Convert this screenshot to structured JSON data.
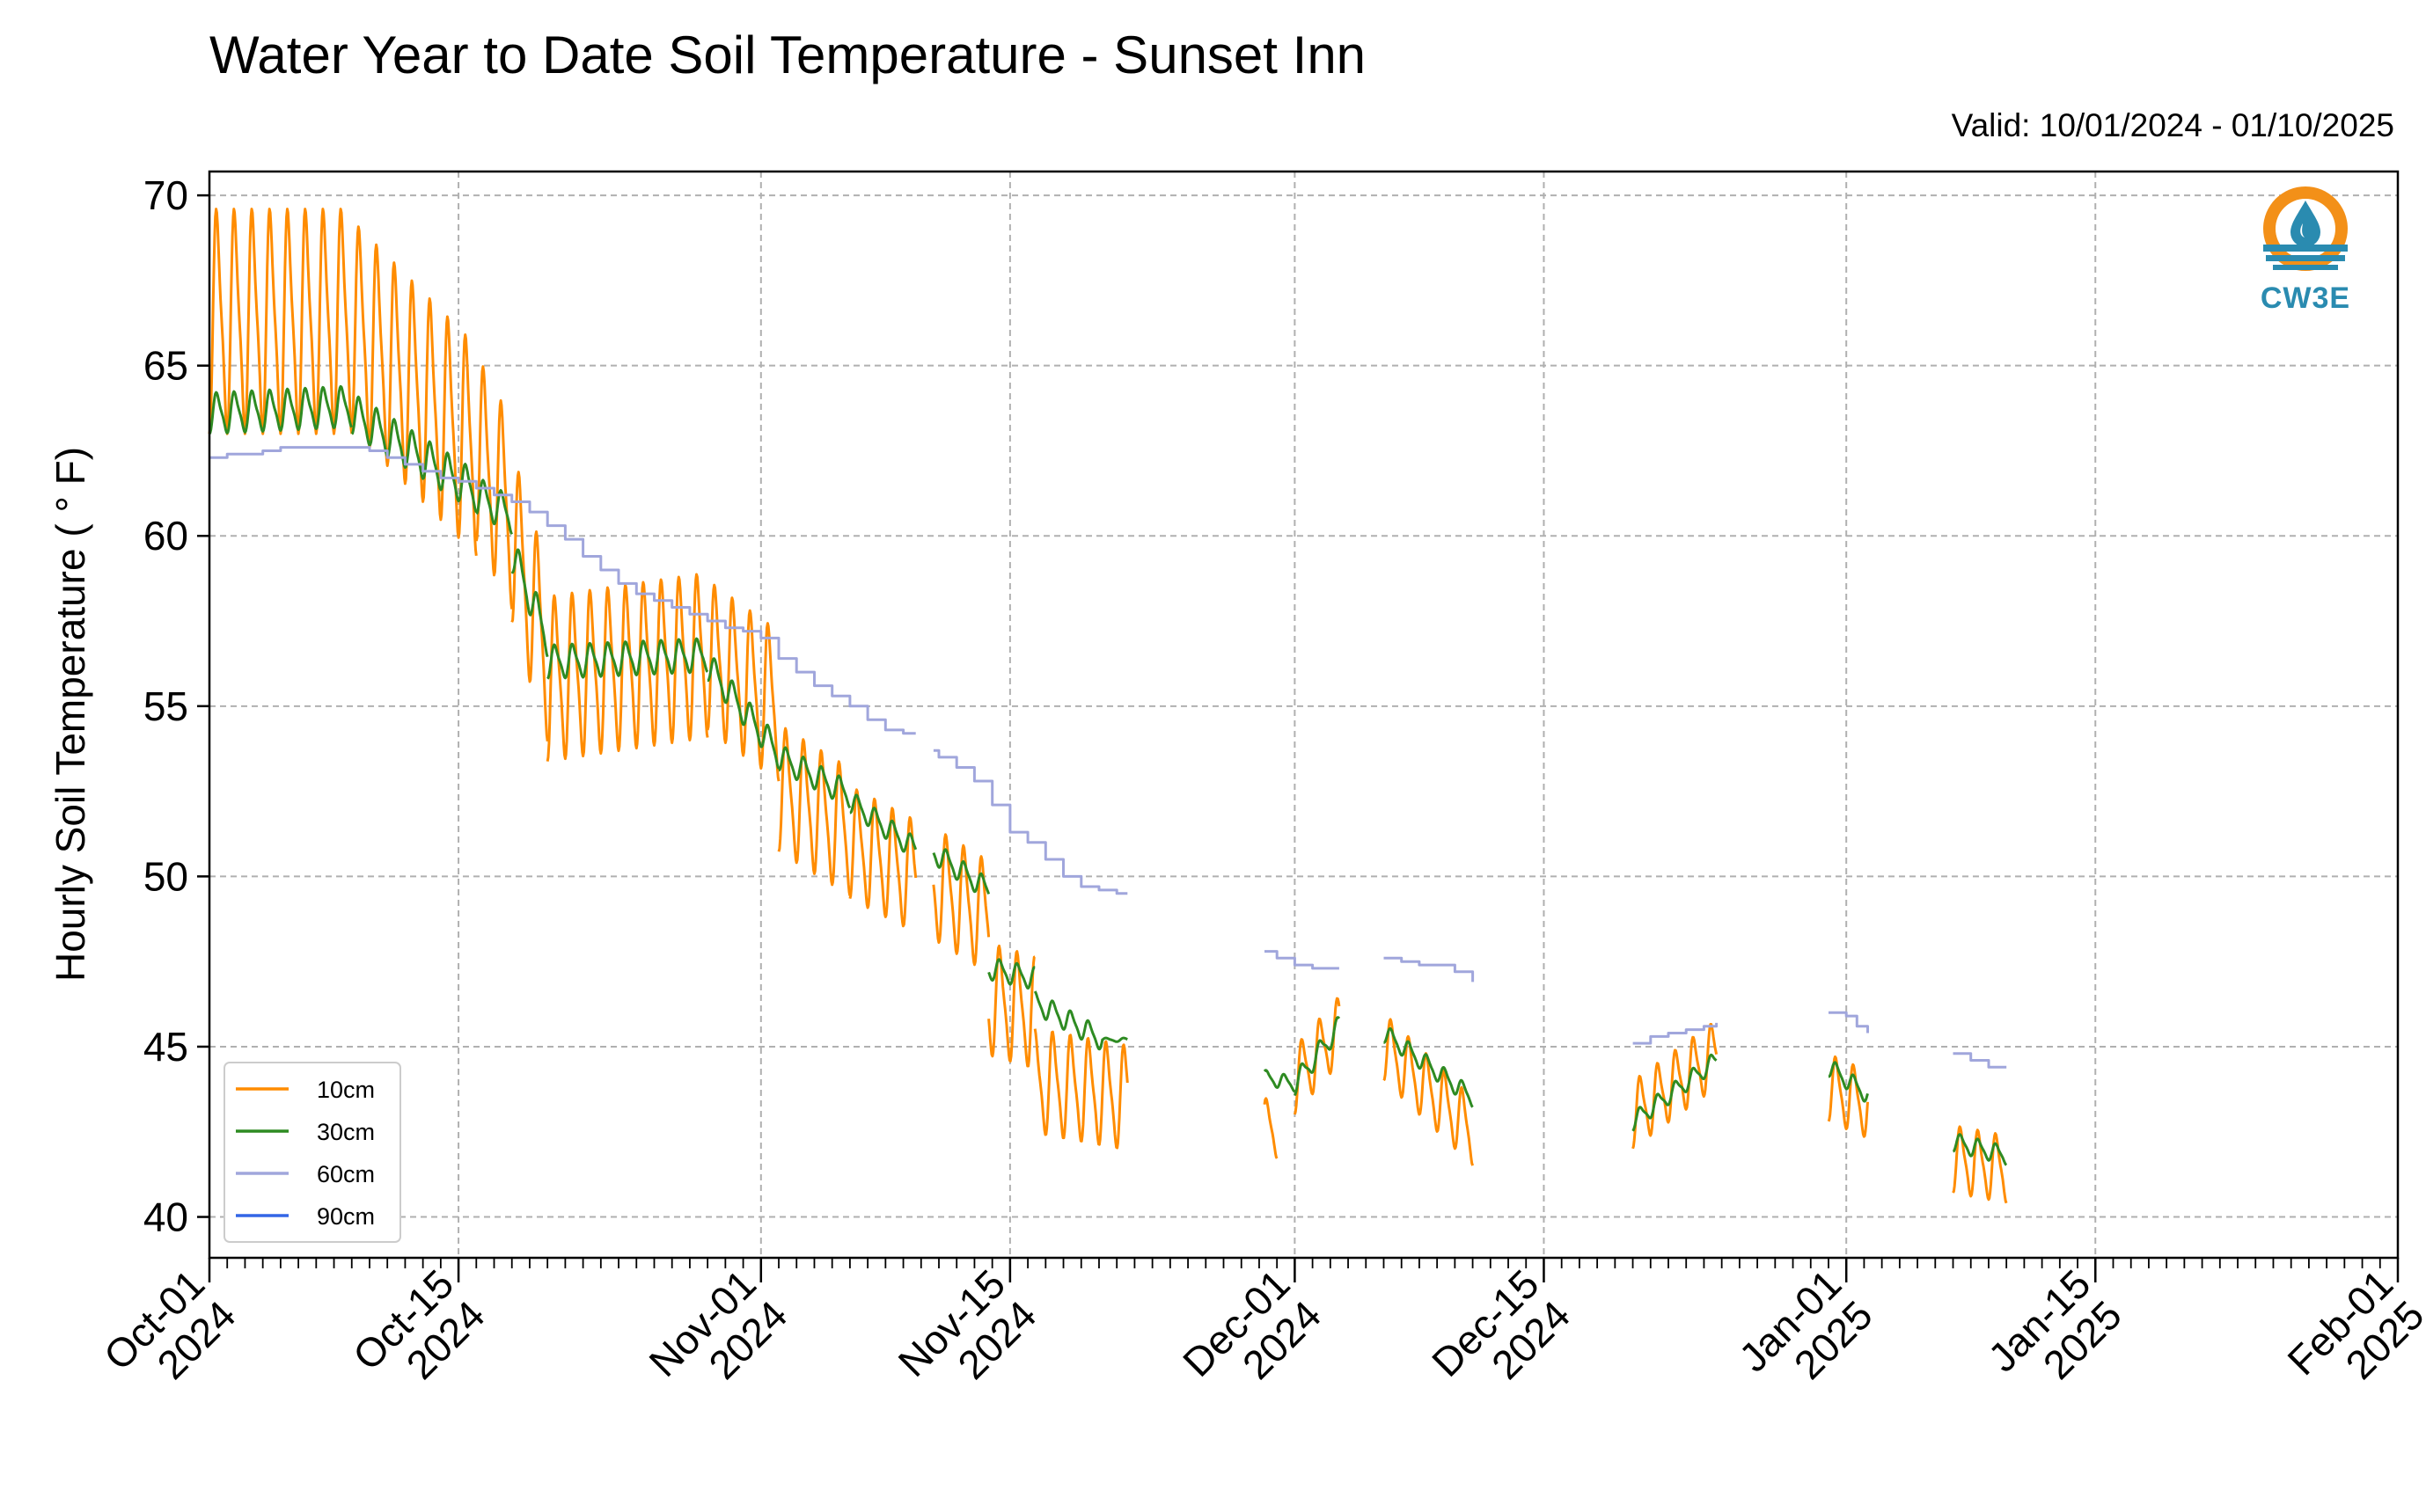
{
  "chart_data": {
    "type": "line",
    "title": "Water Year to Date Soil Temperature - Sunset Inn",
    "subtitle": "Valid: 10/01/2024 - 01/10/2025",
    "ylabel": "Hourly Soil Temperature ( ° F)",
    "xlabel": "",
    "ylim": [
      38.8,
      70.7
    ],
    "xlim": [
      "2024-10-01",
      "2025-02-01"
    ],
    "yticks": [
      40,
      45,
      50,
      55,
      60,
      65,
      70
    ],
    "xticks": [
      {
        "date": "2024-10-01",
        "label": [
          "Oct-01",
          "2024"
        ]
      },
      {
        "date": "2024-10-15",
        "label": [
          "Oct-15",
          "2024"
        ]
      },
      {
        "date": "2024-11-01",
        "label": [
          "Nov-01",
          "2024"
        ]
      },
      {
        "date": "2024-11-15",
        "label": [
          "Nov-15",
          "2024"
        ]
      },
      {
        "date": "2024-12-01",
        "label": [
          "Dec-01",
          "2024"
        ]
      },
      {
        "date": "2024-12-15",
        "label": [
          "Dec-15",
          "2024"
        ]
      },
      {
        "date": "2025-01-01",
        "label": [
          "Jan-01",
          "2025"
        ]
      },
      {
        "date": "2025-01-15",
        "label": [
          "Jan-15",
          "2025"
        ]
      },
      {
        "date": "2025-02-01",
        "label": [
          "Feb-01",
          "2025"
        ]
      }
    ],
    "grid": true,
    "legend_position": "lower-left",
    "series": [
      {
        "name": "10cm",
        "color": "#ff8c00",
        "style": "diurnal",
        "segments": [
          {
            "start": "2024-10-01",
            "end": "2024-10-09",
            "mean": [
              66.3,
              66.3
            ],
            "amp": 3.0
          },
          {
            "start": "2024-10-09",
            "end": "2024-10-16",
            "mean": [
              66.2,
              62.5
            ],
            "amp": 2.8
          },
          {
            "start": "2024-10-16",
            "end": "2024-10-18",
            "mean": [
              62.6,
              60.6
            ],
            "amp": 2.5
          },
          {
            "start": "2024-10-18",
            "end": "2024-10-20",
            "mean": [
              60.0,
              56.5
            ],
            "amp": 2.3
          },
          {
            "start": "2024-10-20",
            "end": "2024-10-29",
            "mean": [
              55.8,
              56.5
            ],
            "amp": 2.2
          },
          {
            "start": "2024-10-29",
            "end": "2024-11-02",
            "mean": [
              56.5,
              55.0
            ],
            "amp": 2.0
          },
          {
            "start": "2024-11-02",
            "end": "2024-11-06",
            "mean": [
              52.6,
              51.3
            ],
            "amp": 1.7
          },
          {
            "start": "2024-11-06",
            "end": "2024-11-09.7",
            "mean": [
              51.0,
              50.0
            ],
            "amp": 1.5
          },
          {
            "start": "2024-11-10.7",
            "end": "2024-11-13.8",
            "mean": [
              49.8,
              48.8
            ],
            "amp": 1.5
          },
          {
            "start": "2024-11-13.8",
            "end": "2024-11-16.4",
            "mean": [
              46.4,
              46.0
            ],
            "amp": 1.5
          },
          {
            "start": "2024-11-16.4",
            "end": "2024-11-21.6",
            "mean": [
              44.0,
              43.5
            ],
            "amp": 1.4
          },
          {
            "start": "2024-11-29.3",
            "end": "2024-11-30.0",
            "mean": [
              42.6,
              42.6
            ],
            "amp": 0.8
          },
          {
            "start": "2024-12-01.0",
            "end": "2024-12-03.5",
            "mean": [
              44.0,
              45.5
            ],
            "amp": 0.9
          },
          {
            "start": "2024-12-06.0",
            "end": "2024-12-11.0",
            "mean": [
              45.0,
              42.5
            ],
            "amp": 0.9
          },
          {
            "start": "2024-12-20.0",
            "end": "2024-12-24.7",
            "mean": [
              43.0,
              44.8
            ],
            "amp": 0.9
          },
          {
            "start": "2024-12-31.0",
            "end": "2025-01-02.2",
            "mean": [
              43.8,
              43.3
            ],
            "amp": 0.9
          },
          {
            "start": "2025-01-07.0",
            "end": "2025-01-10.0",
            "mean": [
              41.7,
              41.4
            ],
            "amp": 0.9
          }
        ]
      },
      {
        "name": "30cm",
        "color": "#2e8b22",
        "style": "diurnal",
        "segments": [
          {
            "start": "2024-10-01",
            "end": "2024-10-09",
            "mean": [
              63.6,
              63.8
            ],
            "amp": 0.55
          },
          {
            "start": "2024-10-09",
            "end": "2024-10-16",
            "mean": [
              63.6,
              61.3
            ],
            "amp": 0.55
          },
          {
            "start": "2024-10-16",
            "end": "2024-10-18",
            "mean": [
              61.2,
              60.6
            ],
            "amp": 0.5
          },
          {
            "start": "2024-10-18",
            "end": "2024-10-20",
            "mean": [
              59.5,
              57.0
            ],
            "amp": 0.5
          },
          {
            "start": "2024-10-20",
            "end": "2024-10-29",
            "mean": [
              56.3,
              56.5
            ],
            "amp": 0.45
          },
          {
            "start": "2024-10-29",
            "end": "2024-11-02",
            "mean": [
              56.2,
              53.6
            ],
            "amp": 0.4
          },
          {
            "start": "2024-11-02",
            "end": "2024-11-06",
            "mean": [
              53.5,
              52.4
            ],
            "amp": 0.35
          },
          {
            "start": "2024-11-06",
            "end": "2024-11-09.7",
            "mean": [
              52.2,
              50.8
            ],
            "amp": 0.3
          },
          {
            "start": "2024-11-10.7",
            "end": "2024-11-13.8",
            "mean": [
              50.7,
              49.6
            ],
            "amp": 0.3
          },
          {
            "start": "2024-11-13.8",
            "end": "2024-11-16.4",
            "mean": [
              47.3,
              47.0
            ],
            "amp": 0.3
          },
          {
            "start": "2024-11-16.4",
            "end": "2024-11-20.2",
            "mean": [
              46.3,
              45.2
            ],
            "amp": 0.3
          },
          {
            "start": "2024-11-20.2",
            "end": "2024-11-21.6",
            "mean": [
              45.2,
              45.2
            ],
            "amp": 0.05
          },
          {
            "start": "2024-11-29.3",
            "end": "2024-12-01.0",
            "mean": [
              44.1,
              43.9
            ],
            "amp": 0.2
          },
          {
            "start": "2024-12-01.0",
            "end": "2024-12-03.5",
            "mean": [
              43.9,
              45.6
            ],
            "amp": 0.3
          },
          {
            "start": "2024-12-06.0",
            "end": "2024-12-11.0",
            "mean": [
              45.4,
              43.5
            ],
            "amp": 0.25
          },
          {
            "start": "2024-12-20.0",
            "end": "2024-12-24.7",
            "mean": [
              42.8,
              44.6
            ],
            "amp": 0.25
          },
          {
            "start": "2024-12-31.0",
            "end": "2025-01-02.2",
            "mean": [
              44.4,
              43.6
            ],
            "amp": 0.25
          },
          {
            "start": "2025-01-07.0",
            "end": "2025-01-10.0",
            "mean": [
              42.2,
              41.8
            ],
            "amp": 0.25
          }
        ]
      },
      {
        "name": "60cm",
        "color": "#a0a6dc",
        "style": "step",
        "segments": [
          {
            "points": [
              [
                "2024-10-01",
                62.3
              ],
              [
                "2024-10-02",
                62.4
              ],
              [
                "2024-10-04",
                62.5
              ],
              [
                "2024-10-05",
                62.6
              ],
              [
                "2024-10-07",
                62.6
              ],
              [
                "2024-10-09",
                62.6
              ],
              [
                "2024-10-10",
                62.5
              ],
              [
                "2024-10-11",
                62.3
              ],
              [
                "2024-10-12",
                62.1
              ],
              [
                "2024-10-13",
                61.9
              ],
              [
                "2024-10-14",
                61.7
              ],
              [
                "2024-10-15",
                61.6
              ],
              [
                "2024-10-16",
                61.4
              ],
              [
                "2024-10-17",
                61.2
              ],
              [
                "2024-10-18",
                61.0
              ],
              [
                "2024-10-19",
                60.7
              ],
              [
                "2024-10-20",
                60.3
              ],
              [
                "2024-10-21",
                59.9
              ],
              [
                "2024-10-22",
                59.4
              ],
              [
                "2024-10-23",
                59.0
              ],
              [
                "2024-10-24",
                58.6
              ],
              [
                "2024-10-25",
                58.3
              ],
              [
                "2024-10-26",
                58.1
              ],
              [
                "2024-10-27",
                57.9
              ],
              [
                "2024-10-28",
                57.7
              ],
              [
                "2024-10-29",
                57.5
              ],
              [
                "2024-10-30",
                57.3
              ],
              [
                "2024-10-31",
                57.2
              ],
              [
                "2024-11-01",
                57.0
              ],
              [
                "2024-11-02",
                56.4
              ],
              [
                "2024-11-03",
                56.0
              ],
              [
                "2024-11-04",
                55.6
              ],
              [
                "2024-11-05",
                55.3
              ],
              [
                "2024-11-06",
                55.0
              ],
              [
                "2024-11-07",
                54.6
              ],
              [
                "2024-11-08",
                54.3
              ],
              [
                "2024-11-09",
                54.2
              ],
              [
                "2024-11-09.7",
                54.2
              ]
            ]
          },
          {
            "points": [
              [
                "2024-11-10.7",
                53.7
              ],
              [
                "2024-11-11",
                53.5
              ],
              [
                "2024-11-12",
                53.2
              ],
              [
                "2024-11-13",
                52.8
              ],
              [
                "2024-11-14",
                52.1
              ],
              [
                "2024-11-15",
                51.3
              ],
              [
                "2024-11-16",
                51.0
              ],
              [
                "2024-11-17",
                50.5
              ],
              [
                "2024-11-18",
                50.0
              ],
              [
                "2024-11-19",
                49.7
              ],
              [
                "2024-11-20",
                49.6
              ],
              [
                "2024-11-21",
                49.5
              ],
              [
                "2024-11-21.6",
                49.5
              ]
            ]
          },
          {
            "points": [
              [
                "2024-11-29.3",
                47.8
              ],
              [
                "2024-11-30",
                47.6
              ],
              [
                "2024-12-01",
                47.4
              ],
              [
                "2024-12-02",
                47.3
              ],
              [
                "2024-12-03",
                47.3
              ],
              [
                "2024-12-03.5",
                47.3
              ]
            ]
          },
          {
            "points": [
              [
                "2024-12-06.0",
                47.6
              ],
              [
                "2024-12-07",
                47.5
              ],
              [
                "2024-12-08",
                47.4
              ],
              [
                "2024-12-09",
                47.4
              ],
              [
                "2024-12-10",
                47.2
              ],
              [
                "2024-12-11",
                46.9
              ]
            ]
          },
          {
            "points": [
              [
                "2024-12-20.0",
                45.1
              ],
              [
                "2024-12-21",
                45.3
              ],
              [
                "2024-12-22",
                45.4
              ],
              [
                "2024-12-23",
                45.5
              ],
              [
                "2024-12-24",
                45.6
              ],
              [
                "2024-12-24.7",
                45.7
              ]
            ]
          },
          {
            "points": [
              [
                "2024-12-31.0",
                46.0
              ],
              [
                "2025-01-01",
                45.9
              ],
              [
                "2025-01-01.6",
                45.6
              ],
              [
                "2025-01-02.2",
                45.4
              ]
            ]
          },
          {
            "points": [
              [
                "2025-01-07.0",
                44.8
              ],
              [
                "2025-01-08",
                44.6
              ],
              [
                "2025-01-09",
                44.4
              ],
              [
                "2025-01-10",
                44.4
              ]
            ]
          }
        ]
      },
      {
        "name": "90cm",
        "color": "#3366e6",
        "style": "step",
        "segments": []
      }
    ]
  },
  "logo": {
    "text": "CW3E",
    "ring_color": "#f39018",
    "water_color": "#2a8bb0"
  }
}
